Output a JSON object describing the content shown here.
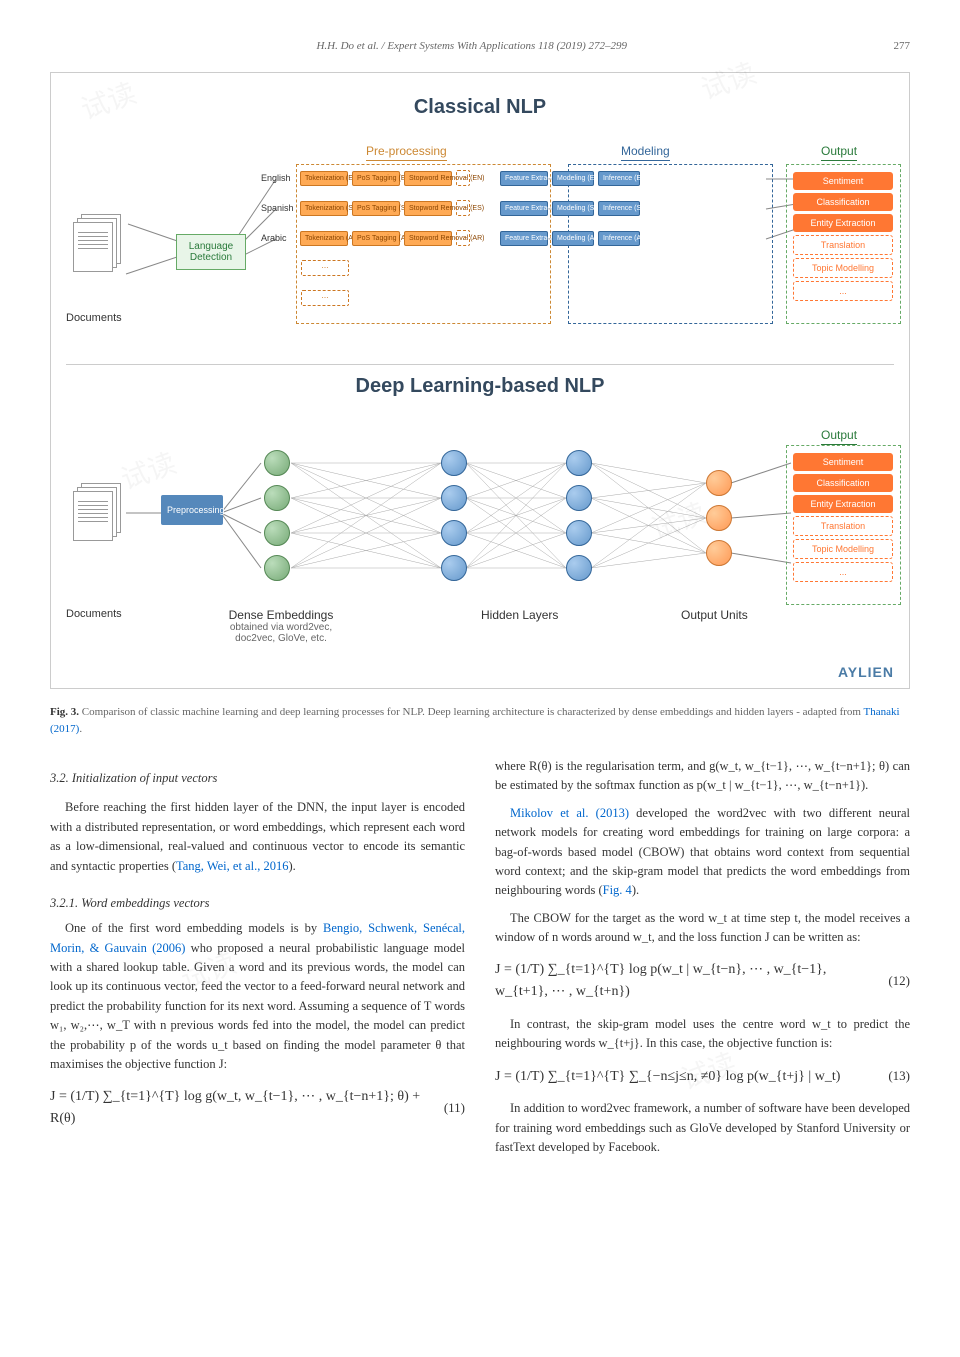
{
  "header": {
    "citation": "H.H. Do et al. / Expert Systems With Applications 118 (2019) 272–299",
    "page": "277"
  },
  "figure3": {
    "panel1_title": "Classical NLP",
    "panel2_title": "Deep Learning-based NLP",
    "section_labels": {
      "preprocessing": "Pre-processing",
      "modeling": "Modeling",
      "output": "Output"
    },
    "lang_detect": "Language\nDetection",
    "documents": "Documents",
    "languages": [
      "English",
      "Spanish",
      "Arabic"
    ],
    "preproc_steps": [
      {
        "tok": "Tokenization\n(English)",
        "pos": "PoS Tagging\n(English)",
        "stop": "Stopword\nRemoval (EN)"
      },
      {
        "tok": "Tokenization\n(Spanish)",
        "pos": "PoS Tagging\n(Spanish)",
        "stop": "Stopword\nRemoval (ES)"
      },
      {
        "tok": "Tokenization\n(Arabic)",
        "pos": "PoS Tagging\n(Arabic)",
        "stop": "Stopword\nRemoval (AR)"
      }
    ],
    "model_steps": [
      {
        "feat": "Feature\nExtraction (EN)",
        "mod": "Modeling\n(English)",
        "inf": "Inference\n(English)"
      },
      {
        "feat": "Feature\nExtraction (ES)",
        "mod": "Modeling\n(Spanish)",
        "inf": "Inference\n(Spanish)"
      },
      {
        "feat": "Feature\nExtraction (AR)",
        "mod": "Modeling\n(Arabic)",
        "inf": "Inference\n(Arabic)"
      }
    ],
    "outputs": [
      "Sentiment",
      "Classification",
      "Entity Extraction",
      "Translation",
      "Topic Modelling",
      "..."
    ],
    "panel2": {
      "preprocessing": "Preprocessing",
      "dense_title": "Dense Embeddings",
      "dense_sub": "obtained via word2vec,\ndoc2vec, GloVe, etc.",
      "hidden": "Hidden Layers",
      "output_units": "Output Units"
    },
    "logo": "AYLIEN",
    "caption_bold": "Fig. 3.",
    "caption_text": " Comparison of classic machine learning and deep learning processes for NLP. Deep learning architecture is characterized by dense embeddings and hidden layers - adapted from ",
    "caption_link": "Thanaki (2017)"
  },
  "body": {
    "left": {
      "sec_32": "3.2. Initialization of input vectors",
      "p1": "Before reaching the first hidden layer of the DNN, the input layer is encoded with a distributed representation, or word embeddings, which represent each word as a low-dimensional, real-valued and continuous vector to encode its semantic and syntactic properties (",
      "p1_link": "Tang, Wei, et al., 2016",
      "p1_end": ").",
      "sec_321": "3.2.1. Word embeddings vectors",
      "p2a": "One of the first word embedding models is by ",
      "p2_link": "Bengio, Schwenk, Senécal, Morin, & Gauvain (2006)",
      "p2b": " who proposed a neural probabilistic language model with a shared lookup table. Given a word and its previous words, the model can look up its continuous vector, feed the vector to a feed-forward neural network and predict the probability function for its next word. Assuming a sequence of T words w₁, w₂,⋯, w_T with n previous words fed into the model, the model can predict the probability p of the words u_t based on finding the model parameter θ that maximises the objective function J:",
      "eq11": "J = (1/T) ∑_{t=1}^{T} log  g(w_t,  w_{t−1},  ⋯ ,  w_{t−n+1};  θ) + R(θ)",
      "eq11_num": "(11)"
    },
    "right": {
      "p1": "where R(θ) is the regularisation term, and g(w_t, w_{t−1}, ⋯, w_{t−n+1}; θ) can be estimated by the softmax function as p(w_t | w_{t−1}, ⋯, w_{t−n+1}).",
      "p2a_link": "Mikolov et al. (2013)",
      "p2a": " developed the word2vec with two different neural network models for creating word embeddings for training on large corpora: a bag-of-words based model (CBOW) that obtains word context from sequential word context; and the skip-gram model that predicts the word embeddings from neighbouring words (",
      "p2a_fig": "Fig. 4",
      "p2a_end": ").",
      "p3": "The CBOW for the target as the word w_t at time step t, the model receives a window of n words around w_t, and the loss function J can be written as:",
      "eq12": "J = (1/T) ∑_{t=1}^{T} log  p(w_t | w_{t−n}, ⋯ , w_{t−1}, w_{t+1}, ⋯ , w_{t+n})",
      "eq12_num": "(12)",
      "p4": "In contrast, the skip-gram model uses the centre word w_t to predict the neighbouring words w_{t+j}. In this case, the objective function is:",
      "eq13": "J = (1/T) ∑_{t=1}^{T} ∑_{−n≤j≤n, ≠0} log p(w_{t+j} | w_t)",
      "eq13_num": "(13)",
      "p5": "In addition to word2vec framework, a number of software have been developed for training word embeddings such as GloVe developed by Stanford University or fastText developed by Facebook."
    }
  },
  "watermarks": [
    "试读",
    "试读",
    "试读",
    "试读",
    "试读",
    "试读"
  ]
}
